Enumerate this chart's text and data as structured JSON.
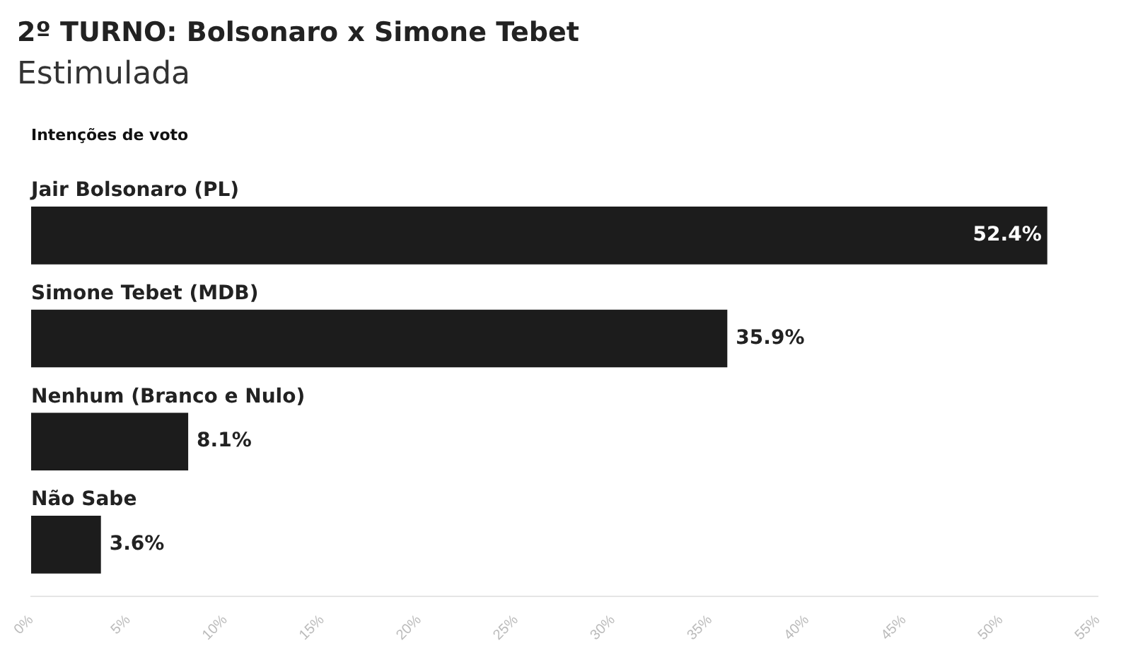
{
  "chart_data": {
    "type": "bar",
    "orientation": "horizontal",
    "title": "2º TURNO: Bolsonaro x Simone Tebet",
    "subtitle": "Estimulada",
    "annotations": [
      "Intenções de voto"
    ],
    "categories": [
      "Jair Bolsonaro (PL)",
      "Simone Tebet (MDB)",
      "Nenhum (Branco e Nulo)",
      "Não Sabe"
    ],
    "values": [
      52.4,
      35.9,
      8.1,
      3.6
    ],
    "color": "#1c1c1c",
    "value_labels": [
      "52.4%",
      "35.9%",
      "8.1%",
      "3.6%"
    ],
    "xlim": [
      0,
      55
    ],
    "xticks": [
      {
        "value": 0,
        "label": "0%"
      },
      {
        "value": 5,
        "label": "5%"
      },
      {
        "value": 10,
        "label": "10%"
      },
      {
        "value": 15,
        "label": "15%"
      },
      {
        "value": 20,
        "label": "20%"
      },
      {
        "value": 25,
        "label": "25%"
      },
      {
        "value": 30,
        "label": "30%"
      },
      {
        "value": 35,
        "label": "35%"
      },
      {
        "value": 40,
        "label": "40%"
      },
      {
        "value": 45,
        "label": "45%"
      },
      {
        "value": 50,
        "label": "50%"
      },
      {
        "value": 55,
        "label": "55%"
      }
    ],
    "grid": false,
    "legend": false
  }
}
